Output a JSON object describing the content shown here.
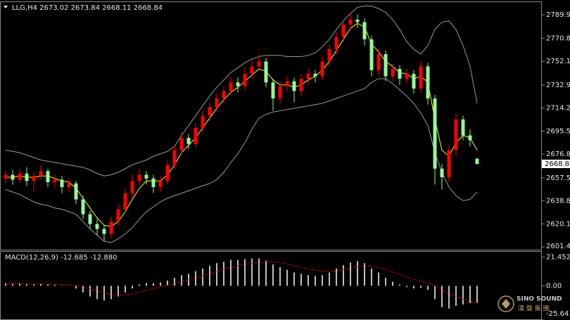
{
  "chart_data": [
    {
      "type": "candlestick",
      "title": "LLG,H4  2673.02 2673.84 2668.11 2668.84",
      "open": [
        2657,
        2660,
        2656,
        2661,
        2655,
        2659,
        2663,
        2654,
        2656,
        2650,
        2653,
        2640,
        2628,
        2620,
        2616,
        2612,
        2622,
        2632,
        2645,
        2655,
        2660,
        2657,
        2650,
        2655,
        2668,
        2680,
        2690,
        2685,
        2698,
        2708,
        2715,
        2722,
        2728,
        2735,
        2732,
        2742,
        2748,
        2752,
        2735,
        2722,
        2732,
        2736,
        2728,
        2738,
        2742,
        2740,
        2752,
        2762,
        2772,
        2782,
        2786,
        2784,
        2770,
        2745,
        2758,
        2740,
        2746,
        2738,
        2742,
        2730,
        2748,
        2722,
        2665,
        2658,
        2680,
        2705,
        2692,
        2673.02
      ],
      "high": [
        2663,
        2664,
        2665,
        2666,
        2662,
        2668,
        2665,
        2660,
        2659,
        2657,
        2655,
        2643,
        2631,
        2624,
        2619,
        2626,
        2636,
        2649,
        2660,
        2665,
        2663,
        2660,
        2659,
        2672,
        2684,
        2695,
        2693,
        2702,
        2712,
        2719,
        2726,
        2732,
        2740,
        2739,
        2747,
        2753,
        2758,
        2755,
        2738,
        2736,
        2740,
        2739,
        2742,
        2746,
        2745,
        2756,
        2766,
        2776,
        2786,
        2791,
        2790,
        2787,
        2773,
        2762,
        2761,
        2750,
        2749,
        2746,
        2745,
        2752,
        2751,
        2725,
        2669,
        2684,
        2710,
        2708,
        2697,
        2673.84
      ],
      "low": [
        2653,
        2652,
        2653,
        2651,
        2646,
        2656,
        2650,
        2649,
        2645,
        2646,
        2636,
        2624,
        2616,
        2611,
        2606,
        2608,
        2619,
        2629,
        2641,
        2651,
        2652,
        2645,
        2646,
        2652,
        2665,
        2677,
        2681,
        2682,
        2694,
        2704,
        2711,
        2718,
        2724,
        2727,
        2729,
        2738,
        2744,
        2731,
        2712,
        2718,
        2728,
        2719,
        2724,
        2734,
        2735,
        2737,
        2748,
        2758,
        2768,
        2778,
        2779,
        2765,
        2740,
        2741,
        2736,
        2736,
        2733,
        2734,
        2726,
        2727,
        2717,
        2652,
        2648,
        2654,
        2676,
        2688,
        2683,
        2668.11
      ],
      "close": [
        2660,
        2656,
        2661,
        2655,
        2659,
        2663,
        2654,
        2656,
        2650,
        2653,
        2640,
        2628,
        2620,
        2616,
        2612,
        2622,
        2632,
        2645,
        2655,
        2660,
        2657,
        2650,
        2655,
        2668,
        2680,
        2690,
        2685,
        2698,
        2708,
        2715,
        2722,
        2728,
        2735,
        2732,
        2742,
        2748,
        2752,
        2735,
        2722,
        2732,
        2736,
        2728,
        2738,
        2742,
        2740,
        2752,
        2762,
        2772,
        2782,
        2786,
        2784,
        2770,
        2745,
        2758,
        2740,
        2746,
        2738,
        2742,
        2730,
        2748,
        2722,
        2665,
        2658,
        2680,
        2705,
        2692,
        2688,
        2668.84
      ],
      "up_color": "#ff0000",
      "down_color": "#98f598",
      "overlays": [
        {
          "color": "#9a9a9a",
          "values": [
            2680,
            2679,
            2678,
            2676,
            2674,
            2672,
            2671,
            2670,
            2669,
            2668,
            2667,
            2666,
            2664,
            2661,
            2659,
            2660,
            2662,
            2665,
            2668,
            2670,
            2672,
            2675,
            2677,
            2679,
            2683,
            2692,
            2700,
            2708,
            2716,
            2724,
            2731,
            2737,
            2743,
            2747,
            2751,
            2754,
            2756,
            2757,
            2757,
            2757,
            2756,
            2756,
            2756,
            2757,
            2759,
            2764,
            2770,
            2778,
            2785,
            2791,
            2796,
            2797,
            2797,
            2795,
            2792,
            2786,
            2778,
            2768,
            2762,
            2758,
            2765,
            2778,
            2784,
            2785,
            2778,
            2765,
            2748,
            2718
          ]
        },
        {
          "color": "#9a9a9a",
          "values": [
            2648,
            2646,
            2644,
            2641,
            2638,
            2636,
            2635,
            2633,
            2632,
            2630,
            2628,
            2622,
            2616,
            2611,
            2606,
            2605,
            2608,
            2612,
            2617,
            2624,
            2630,
            2634,
            2638,
            2641,
            2643,
            2645,
            2647,
            2649,
            2651,
            2653,
            2656,
            2662,
            2670,
            2677,
            2686,
            2697,
            2706,
            2709,
            2711,
            2712,
            2713,
            2714,
            2715,
            2716,
            2717,
            2718,
            2720,
            2722,
            2724,
            2726,
            2728,
            2730,
            2735,
            2738,
            2738,
            2734,
            2729,
            2724,
            2718,
            2710,
            2700,
            2678,
            2662,
            2650,
            2643,
            2639,
            2640,
            2646
          ]
        },
        {
          "color": "#ffff00",
          "values": [
            2658,
            2658,
            2659,
            2658,
            2658,
            2659,
            2659,
            2657,
            2655,
            2654,
            2649,
            2641,
            2633,
            2625,
            2619,
            2618,
            2622,
            2630,
            2640,
            2649,
            2655,
            2655,
            2655,
            2660,
            2668,
            2678,
            2684,
            2690,
            2698,
            2706,
            2714,
            2721,
            2727,
            2731,
            2736,
            2741,
            2746,
            2744,
            2737,
            2733,
            2733,
            2731,
            2733,
            2737,
            2740,
            2745,
            2752,
            2761,
            2770,
            2779,
            2783,
            2780,
            2766,
            2760,
            2752,
            2748,
            2743,
            2742,
            2738,
            2740,
            2735,
            2705,
            2680,
            2675,
            2686,
            2692,
            2690,
            2680
          ]
        }
      ],
      "price_marker": {
        "value": 2668.84,
        "label": "2668.84"
      },
      "ylim": [
        2599.17,
        2801.95
      ],
      "yticks": [
        2789.95,
        2770.85,
        2752.15,
        {
          "value": 2732.9,
          "label": "2732.90"
        },
        {
          "value": 2714.2,
          "label": "2714.20"
        },
        {
          "value": 2695.5,
          "label": "2695.50"
        },
        {
          "value": 2676.8,
          "label": "2676.80"
        },
        2657.55,
        2638.85,
        2620.15,
        2601.45
      ]
    },
    {
      "type": "macd",
      "title": "MACD(12,26,9) -12.685 -12.880",
      "histogram": [
        2,
        1.5,
        1.8,
        1.2,
        1,
        1.5,
        1,
        0.8,
        0.2,
        0,
        -2,
        -5,
        -8,
        -10,
        -11,
        -10,
        -8,
        -5,
        -2,
        1,
        2,
        2,
        2.5,
        4,
        6,
        8,
        9,
        11,
        13,
        15,
        17,
        18,
        19.5,
        19.5,
        20,
        20.5,
        20.5,
        19,
        16,
        14,
        12,
        10,
        9,
        8,
        7.5,
        8,
        10,
        13,
        15.5,
        17.5,
        18.5,
        17,
        13,
        10,
        6,
        3,
        1,
        -1,
        -2,
        -1.5,
        -3,
        -10,
        -16,
        -17,
        -15,
        -14,
        -13,
        -12.685
      ],
      "histogram_color": "#ffffff",
      "signal": [
        1.5,
        1.6,
        1.6,
        1.5,
        1.4,
        1.3,
        1.3,
        1.2,
        1,
        0.7,
        0.2,
        -0.9,
        -2.4,
        -4,
        -5.5,
        -6.5,
        -7,
        -6.8,
        -6,
        -4.8,
        -3.4,
        -2,
        -0.8,
        0.3,
        1.5,
        3,
        4.5,
        6,
        7.6,
        9.2,
        10.8,
        12.3,
        13.7,
        15,
        16,
        17,
        17.8,
        18.2,
        18,
        17.4,
        16.4,
        15.1,
        13.9,
        12.7,
        11.7,
        10.9,
        10.8,
        11.2,
        12.1,
        13.2,
        14.3,
        14.9,
        14.6,
        13.7,
        12.2,
        10.4,
        8.5,
        6.6,
        4.9,
        3.6,
        2.3,
        -0.1,
        -3.3,
        -6.1,
        -8.1,
        -9.8,
        -11.5,
        -12.88
      ],
      "signal_color": "#ff0000",
      "ylim": [
        -25.641,
        25
      ],
      "yticks": [
        21.452,
        {
          "value": 0,
          "label": "0.00"
        },
        -25.641
      ]
    }
  ],
  "watermark": {
    "title": "SINO SOUND",
    "subtitle": "漢 聲 集 團"
  }
}
